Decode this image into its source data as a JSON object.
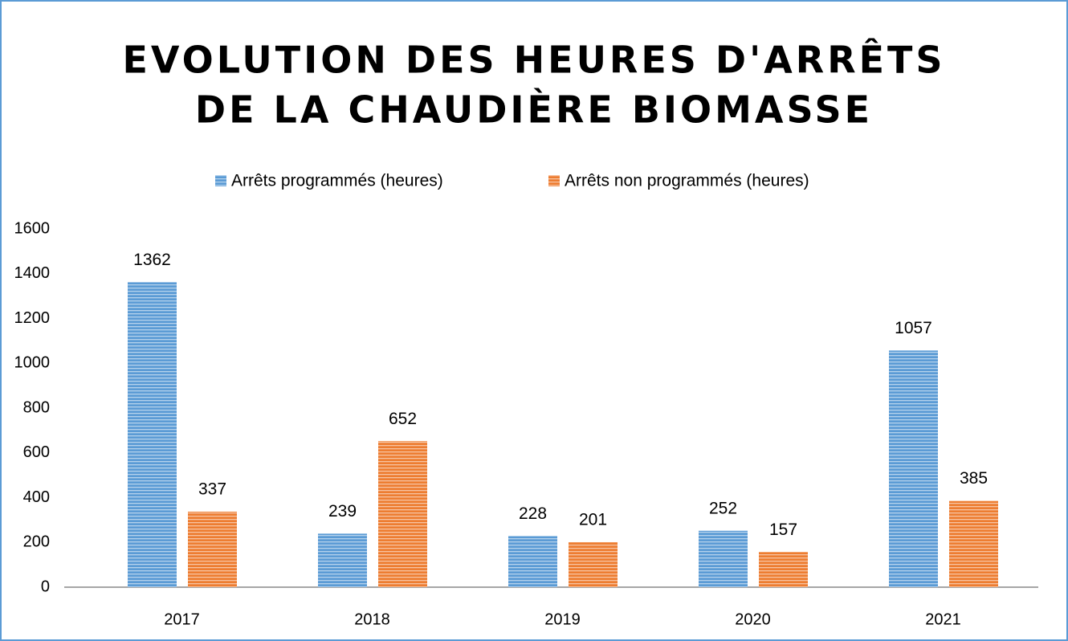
{
  "chart_data": {
    "type": "bar",
    "title": [
      "EVOLUTION DES HEURES D'ARRÊTS",
      "DE LA CHAUDIÈRE BIOMASSE"
    ],
    "categories": [
      "2017",
      "2018",
      "2019",
      "2020",
      "2021"
    ],
    "series": [
      {
        "name": "Arrêts programmés (heures)",
        "color": "#5b9bd5",
        "values": [
          1362,
          239,
          228,
          252,
          1057
        ]
      },
      {
        "name": "Arrêts non programmés (heures)",
        "color": "#ed7d31",
        "values": [
          337,
          652,
          201,
          157,
          385
        ]
      }
    ],
    "ylim": [
      0,
      1600
    ],
    "yticks": [
      0,
      200,
      400,
      600,
      800,
      1000,
      1200,
      1400,
      1600
    ],
    "grid": false,
    "legend": "top",
    "data_labels": true
  }
}
